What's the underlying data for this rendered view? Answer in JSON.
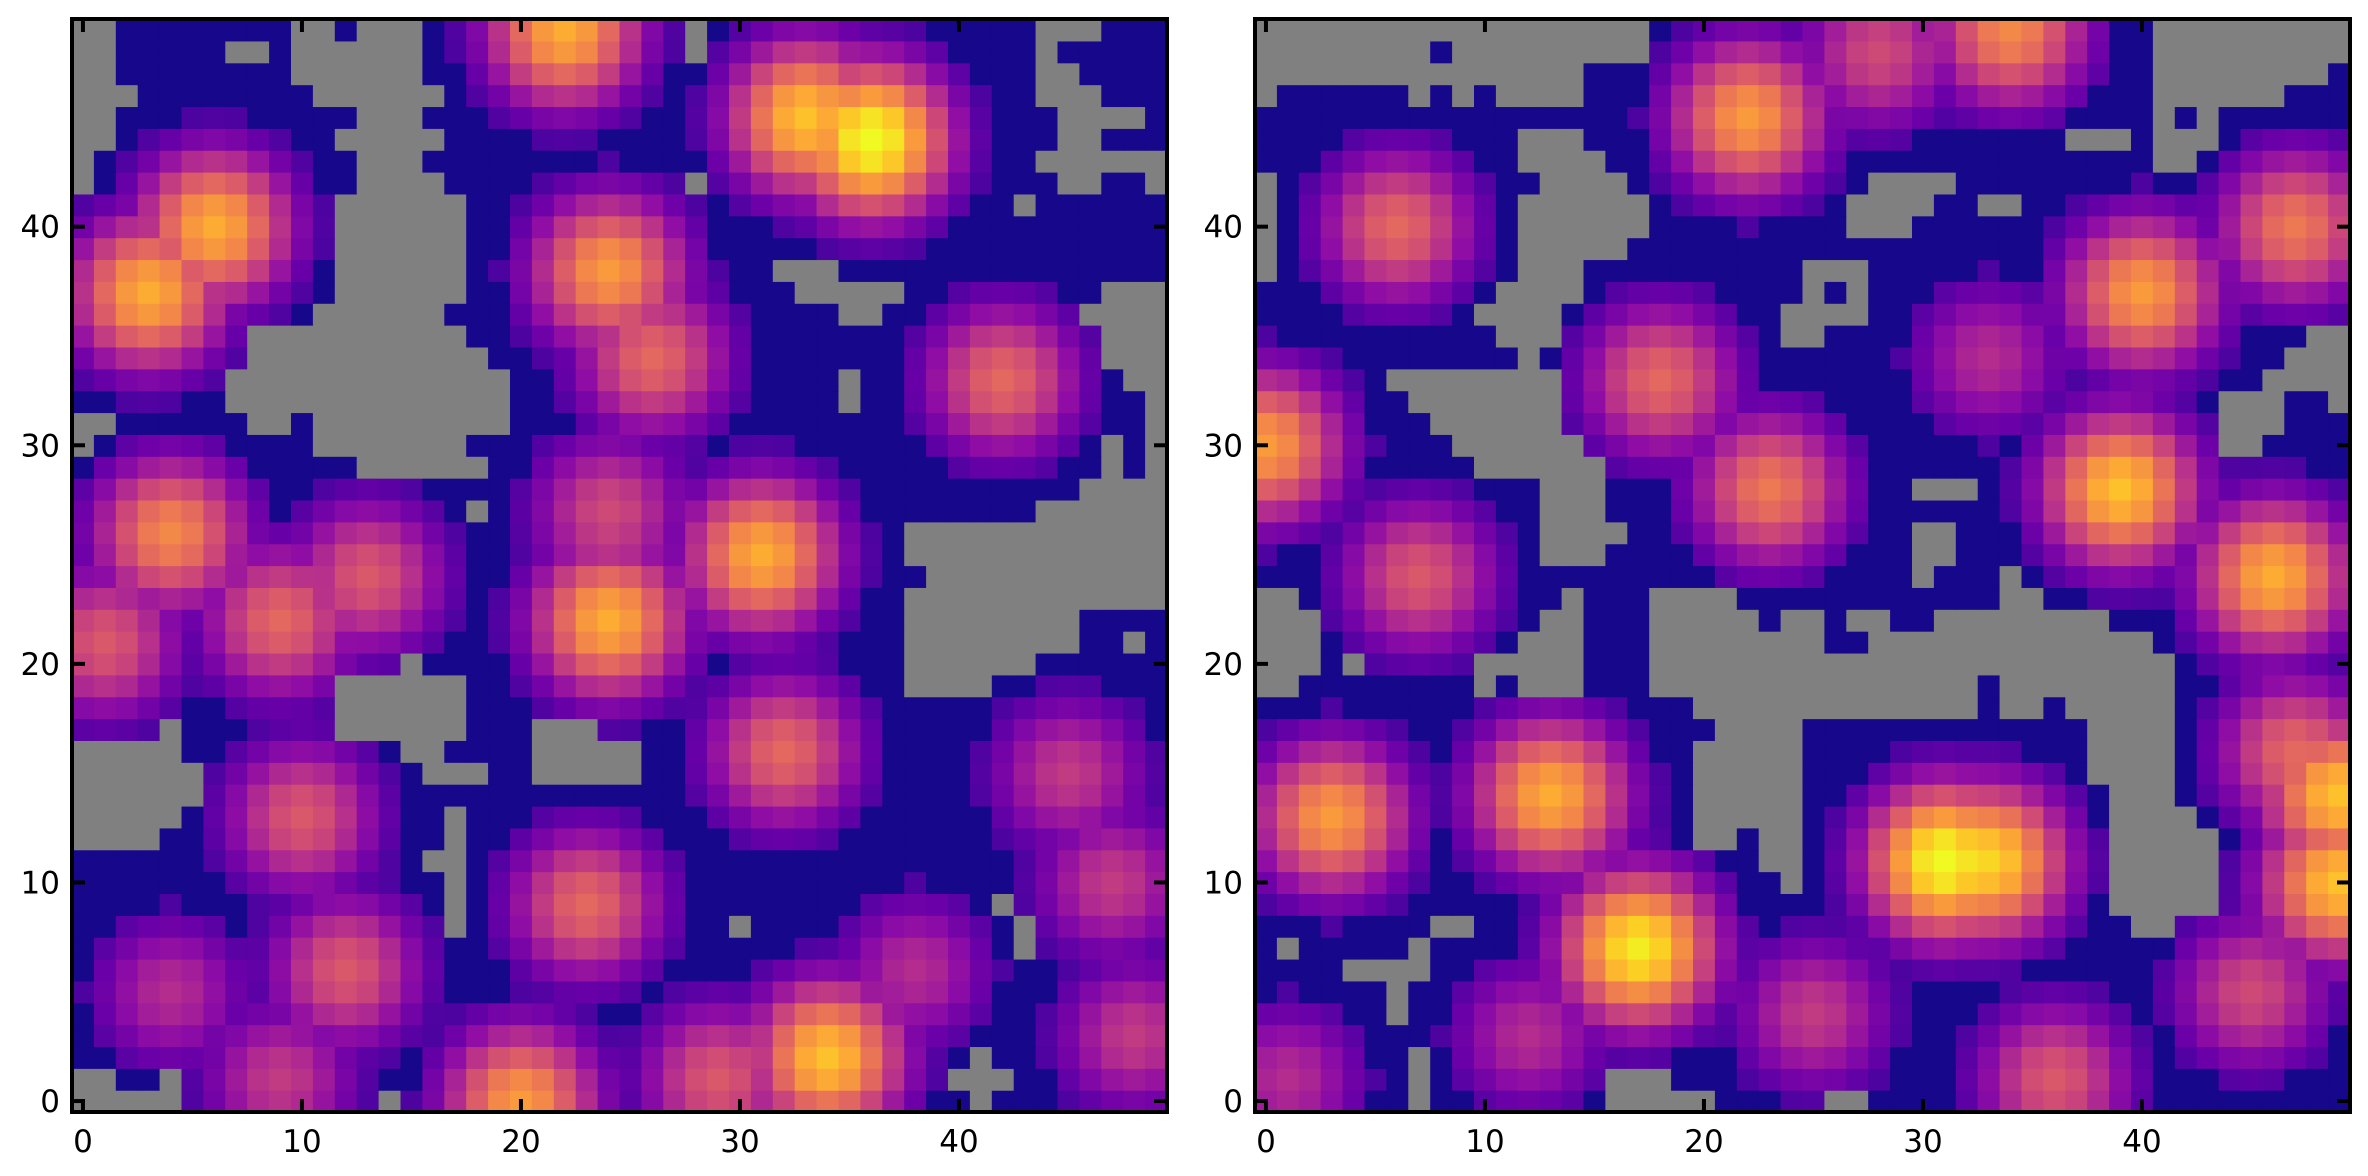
{
  "figure": {
    "panels": 2
  },
  "chart_data": [
    {
      "type": "heatmap",
      "title": "",
      "xlabel": "",
      "ylabel": "",
      "grid_size": [
        50,
        50
      ],
      "xlim": [
        -0.5,
        49.5
      ],
      "ylim": [
        -0.5,
        49.5
      ],
      "origin": "lower",
      "colormap": "plasma",
      "masked_color": "#808080",
      "xticks": [
        0,
        10,
        20,
        30,
        40
      ],
      "yticks": [
        0,
        10,
        20,
        30,
        40
      ],
      "xtick_labels": [
        "0",
        "10",
        "20",
        "30",
        "40"
      ],
      "ytick_labels": [
        "0",
        "10",
        "20",
        "30",
        "40"
      ],
      "hotspots": [
        {
          "x": 36,
          "y": 44,
          "peak": 1.0
        },
        {
          "x": 33,
          "y": 45,
          "peak": 0.85
        },
        {
          "x": 22,
          "y": 49,
          "peak": 0.8
        },
        {
          "x": 6,
          "y": 40,
          "peak": 0.8
        },
        {
          "x": 3,
          "y": 37,
          "peak": 0.8
        },
        {
          "x": 24,
          "y": 38,
          "peak": 0.75
        },
        {
          "x": 26,
          "y": 34,
          "peak": 0.6
        },
        {
          "x": 42,
          "y": 33,
          "peak": 0.6
        },
        {
          "x": 4,
          "y": 26,
          "peak": 0.7
        },
        {
          "x": 9,
          "y": 22,
          "peak": 0.6
        },
        {
          "x": 13,
          "y": 24,
          "peak": 0.55
        },
        {
          "x": 24,
          "y": 22,
          "peak": 0.8
        },
        {
          "x": 31,
          "y": 25,
          "peak": 0.8
        },
        {
          "x": 24,
          "y": 27,
          "peak": 0.5
        },
        {
          "x": 1,
          "y": 21,
          "peak": 0.55
        },
        {
          "x": 32,
          "y": 16,
          "peak": 0.6
        },
        {
          "x": 10,
          "y": 13,
          "peak": 0.55
        },
        {
          "x": 23,
          "y": 9,
          "peak": 0.6
        },
        {
          "x": 12,
          "y": 6,
          "peak": 0.55
        },
        {
          "x": 34,
          "y": 2,
          "peak": 0.85
        },
        {
          "x": 20,
          "y": 0,
          "peak": 0.75
        },
        {
          "x": 38,
          "y": 6,
          "peak": 0.4
        },
        {
          "x": 47,
          "y": 10,
          "peak": 0.45
        },
        {
          "x": 48,
          "y": 3,
          "peak": 0.45
        },
        {
          "x": 4,
          "y": 5,
          "peak": 0.4
        },
        {
          "x": 45,
          "y": 15,
          "peak": 0.45
        },
        {
          "x": 9,
          "y": 1,
          "peak": 0.45
        },
        {
          "x": 29,
          "y": 1,
          "peak": 0.55
        }
      ]
    },
    {
      "type": "heatmap",
      "title": "",
      "xlabel": "",
      "ylabel": "",
      "grid_size": [
        50,
        50
      ],
      "xlim": [
        -0.5,
        49.5
      ],
      "ylim": [
        -0.5,
        49.5
      ],
      "origin": "lower",
      "colormap": "plasma",
      "masked_color": "#808080",
      "xticks": [
        0,
        10,
        20,
        30,
        40
      ],
      "yticks": [
        0,
        10,
        20,
        30,
        40
      ],
      "xtick_labels": [
        "0",
        "10",
        "20",
        "30",
        "40"
      ],
      "ytick_labels": [
        "0",
        "10",
        "20",
        "30",
        "40"
      ],
      "hotspots": [
        {
          "x": 31,
          "y": 11,
          "peak": 1.0
        },
        {
          "x": 33,
          "y": 11,
          "peak": 0.9
        },
        {
          "x": 17,
          "y": 7,
          "peak": 0.95
        },
        {
          "x": 13,
          "y": 14,
          "peak": 0.8
        },
        {
          "x": 49,
          "y": 10,
          "peak": 0.85
        },
        {
          "x": 49,
          "y": 14,
          "peak": 0.85
        },
        {
          "x": 47,
          "y": 16,
          "peak": 0.6
        },
        {
          "x": 3,
          "y": 13,
          "peak": 0.75
        },
        {
          "x": 0,
          "y": 30,
          "peak": 0.75
        },
        {
          "x": 39,
          "y": 28,
          "peak": 0.85
        },
        {
          "x": 46,
          "y": 24,
          "peak": 0.8
        },
        {
          "x": 40,
          "y": 37,
          "peak": 0.75
        },
        {
          "x": 47,
          "y": 40,
          "peak": 0.65
        },
        {
          "x": 6,
          "y": 40,
          "peak": 0.6
        },
        {
          "x": 22,
          "y": 45,
          "peak": 0.75
        },
        {
          "x": 34,
          "y": 49,
          "peak": 0.7
        },
        {
          "x": 28,
          "y": 48,
          "peak": 0.5
        },
        {
          "x": 23,
          "y": 28,
          "peak": 0.65
        },
        {
          "x": 18,
          "y": 33,
          "peak": 0.6
        },
        {
          "x": 7,
          "y": 24,
          "peak": 0.55
        },
        {
          "x": 36,
          "y": 1,
          "peak": 0.55
        },
        {
          "x": 45,
          "y": 5,
          "peak": 0.5
        },
        {
          "x": 25,
          "y": 4,
          "peak": 0.45
        },
        {
          "x": 1,
          "y": 1,
          "peak": 0.4
        },
        {
          "x": 12,
          "y": 3,
          "peak": 0.4
        },
        {
          "x": 33,
          "y": 34,
          "peak": 0.4
        }
      ]
    }
  ]
}
